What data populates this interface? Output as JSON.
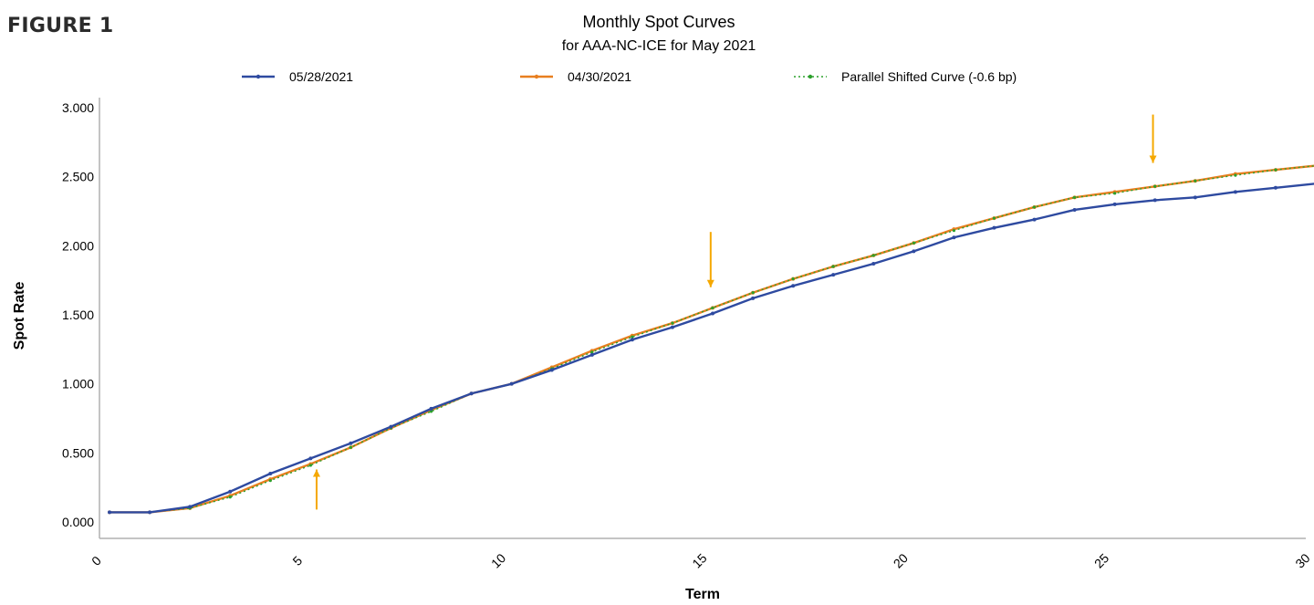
{
  "figure_label": "FIGURE 1",
  "colors": {
    "series_blue": "#2e4aa0",
    "series_orange": "#e87f1f",
    "series_green": "#2ca02c",
    "arrow": "#f5a800",
    "axis": "#b0b0b0"
  },
  "chart_data": {
    "type": "line",
    "title": "Monthly Spot Curves",
    "subtitle": "for AAA-NC-ICE for May 2021",
    "xlabel": "Term",
    "ylabel": "Spot Rate",
    "xlim": [
      0,
      30
    ],
    "ylim": [
      0,
      3
    ],
    "x_ticks": [
      0,
      5,
      10,
      15,
      20,
      25,
      30
    ],
    "x_tick_labels": [
      "0",
      "5",
      "10",
      "15",
      "20",
      "25",
      "30"
    ],
    "y_ticks": [
      0,
      0.5,
      1,
      1.5,
      2,
      2.5,
      3
    ],
    "y_tick_labels": [
      "0.000",
      "0.500",
      "1.000",
      "1.500",
      "2.000",
      "2.500",
      "3.000"
    ],
    "grid": false,
    "legend_position": "top",
    "x": [
      0.25,
      1.25,
      2.25,
      3.25,
      4.25,
      5.25,
      6.25,
      7.25,
      8.25,
      9.25,
      10.25,
      11.25,
      12.25,
      13.25,
      14.25,
      15.25,
      16.25,
      17.25,
      18.25,
      19.25,
      20.25,
      21.25,
      22.25,
      23.25,
      24.25,
      25.25,
      26.25,
      27.25,
      28.25,
      29.25,
      30.25
    ],
    "series": [
      {
        "name": "05/28/2021",
        "color": "#2e4aa0",
        "style": "solid-markers",
        "values": [
          0.07,
          0.07,
          0.11,
          0.22,
          0.35,
          0.46,
          0.57,
          0.69,
          0.82,
          0.93,
          1.0,
          1.1,
          1.21,
          1.32,
          1.41,
          1.51,
          1.62,
          1.71,
          1.79,
          1.87,
          1.96,
          2.06,
          2.13,
          2.19,
          2.26,
          2.3,
          2.33,
          2.35,
          2.39,
          2.42,
          2.45
        ]
      },
      {
        "name": "04/30/2021",
        "color": "#e87f1f",
        "style": "solid-markers",
        "values": [
          0.07,
          0.07,
          0.1,
          0.19,
          0.31,
          0.42,
          0.54,
          0.68,
          0.81,
          0.93,
          1.0,
          1.12,
          1.24,
          1.35,
          1.44,
          1.55,
          1.66,
          1.76,
          1.85,
          1.93,
          2.02,
          2.12,
          2.2,
          2.28,
          2.35,
          2.39,
          2.43,
          2.47,
          2.52,
          2.55,
          2.58
        ]
      },
      {
        "name": "Parallel Shifted Curve (-0.6 bp)",
        "color": "#2ca02c",
        "style": "dotted-markers",
        "values": [
          0.07,
          0.07,
          0.1,
          0.18,
          0.3,
          0.41,
          0.54,
          0.68,
          0.8,
          0.93,
          1.0,
          1.11,
          1.23,
          1.34,
          1.44,
          1.55,
          1.66,
          1.76,
          1.85,
          1.93,
          2.02,
          2.11,
          2.2,
          2.28,
          2.35,
          2.38,
          2.43,
          2.47,
          2.51,
          2.55,
          2.58
        ]
      }
    ],
    "annotations": [
      {
        "type": "arrow",
        "direction": "up",
        "x": 5.4,
        "y_from": 0.09,
        "y_to": 0.38
      },
      {
        "type": "arrow",
        "direction": "down",
        "x": 15.2,
        "y_from": 2.1,
        "y_to": 1.7
      },
      {
        "type": "arrow",
        "direction": "down",
        "x": 26.2,
        "y_from": 2.95,
        "y_to": 2.6
      }
    ]
  }
}
